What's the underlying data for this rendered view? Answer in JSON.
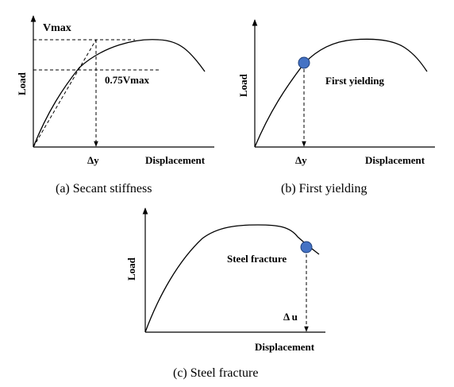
{
  "panels": {
    "a": {
      "caption": "(a) Secant stiffness",
      "ylabel": "Load",
      "xlabel": "Displacement",
      "vmax_label": "Vmax",
      "vmax75_label": "0.75Vmax",
      "dy_label": "Δy"
    },
    "b": {
      "caption": "(b) First yielding",
      "ylabel": "Load",
      "xlabel": "Displacement",
      "event_label": "First yielding",
      "dy_label": "Δy"
    },
    "c": {
      "caption": "(c) Steel fracture",
      "ylabel": "Load",
      "xlabel": "Displacement",
      "event_label": "Steel fracture",
      "du_label": "Δ u"
    }
  },
  "colors": {
    "curve": "#000000",
    "marker_fill": "#4472c4",
    "marker_stroke": "#1f3f7a"
  }
}
